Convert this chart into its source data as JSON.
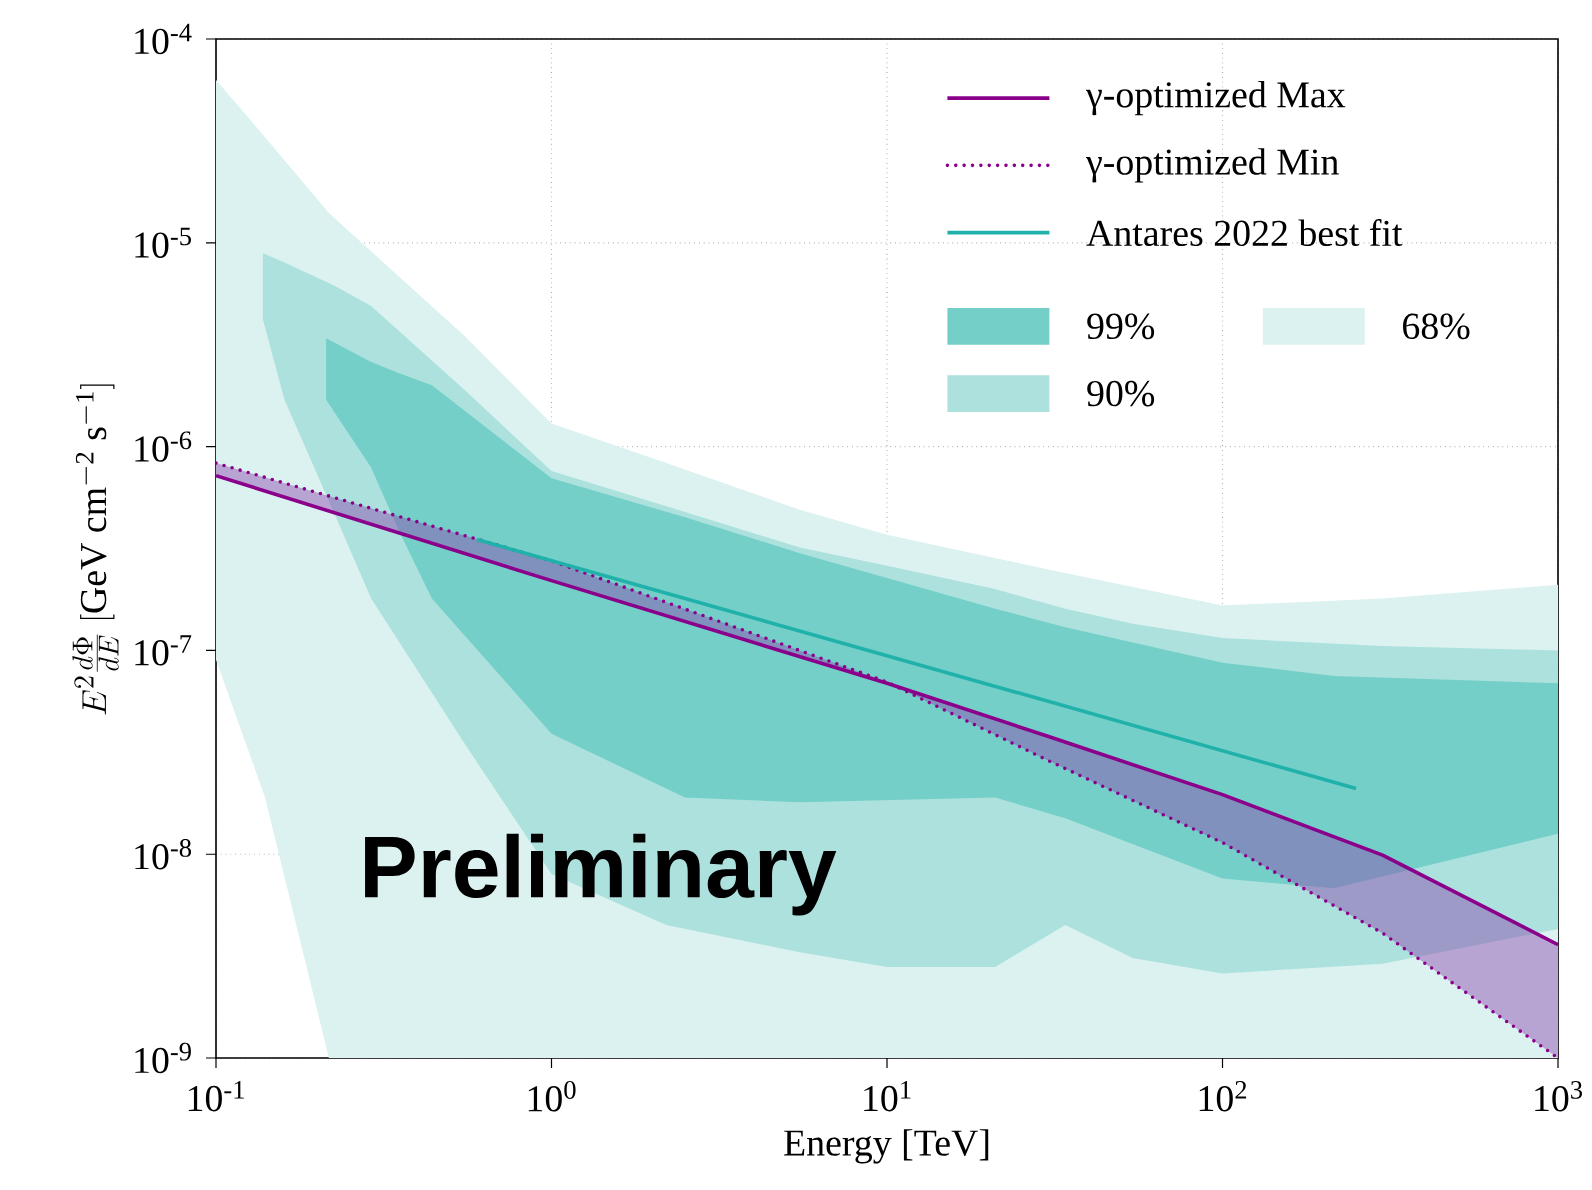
{
  "chart_data": {
    "type": "line",
    "xlabel": "Energy [TeV]",
    "ylabel": "E^2\\frac{d\\Phi}{dE}\\;[\\mathrm{GeV\\ cm^{-2}\\ s^{-1}}]",
    "log": "xy",
    "grid": true,
    "legend": "top right",
    "xlim": [
      0.1,
      1000
    ],
    "ylim": [
      1e-09,
      0.0001
    ],
    "xticks": [
      {
        "value": 0.1,
        "label": "10$^{-1}$"
      },
      {
        "value": 1,
        "label": "10$^{0}$"
      },
      {
        "value": 10,
        "label": "10$^{1}$"
      },
      {
        "value": 100,
        "label": "10$^{2}$"
      },
      {
        "value": 1000,
        "label": "10$^{3}$"
      }
    ],
    "yticks": [
      {
        "value": 1e-09,
        "label": "10$^{-9}$"
      },
      {
        "value": 1e-08,
        "label": "10$^{-8}$"
      },
      {
        "value": 1e-07,
        "label": "10$^{-7}$"
      },
      {
        "value": 1e-06,
        "label": "10$^{-6}$"
      },
      {
        "value": 1e-05,
        "label": "10$^{-5}$"
      },
      {
        "value": 0.0001,
        "label": "10$^{-4}$"
      }
    ],
    "annotations": [
      "Preliminary"
    ],
    "series": [
      {
        "name": "68%",
        "color": "#dbf2f0",
        "x": [
          0.1,
          0.14,
          0.217,
          0.55,
          1,
          2.2,
          5.5,
          10,
          30,
          100,
          300,
          1000
        ],
        "values": [
          null,
          null,
          null,
          null,
          null,
          null,
          null,
          null,
          null,
          null,
          null,
          null
        ],
        "upper": [
          6.3e-05,
          3.3e-05,
          1.4e-05,
          3.5e-06,
          1.3e-06,
          8.3e-07,
          4.9e-07,
          3.7e-07,
          2.5e-07,
          1.66e-07,
          1.8e-07,
          2.1e-07
        ],
        "lower": [
          9e-08,
          1.9e-08,
          1e-09,
          1e-09,
          1e-09,
          1e-09,
          1e-09,
          1e-09,
          1e-09,
          1e-09,
          1e-09,
          1e-09
        ]
      },
      {
        "name": "90%",
        "color": "#ace1dd",
        "x": [
          0.138,
          0.16,
          0.224,
          0.29,
          0.55,
          1,
          2.2,
          5.5,
          10,
          21,
          34,
          54,
          100,
          300,
          1000
        ],
        "values": [
          null,
          null,
          null,
          null,
          null,
          null,
          null,
          null,
          null,
          null,
          null,
          null,
          null,
          null,
          null
        ],
        "upper": [
          8.9e-06,
          8e-06,
          6.2e-06,
          4.9e-06,
          1.9e-06,
          7.6e-07,
          5.1e-07,
          3.2e-07,
          2.6e-07,
          2e-07,
          1.6e-07,
          1.35e-07,
          1.15e-07,
          1.05e-07,
          1e-07
        ],
        "lower": [
          4.2e-06,
          1.7e-06,
          4.8e-07,
          1.8e-07,
          3.5e-08,
          8e-09,
          4.5e-09,
          3.3e-09,
          2.8e-09,
          2.8e-09,
          4.5e-09,
          3.1e-09,
          2.6e-09,
          2.9e-09,
          4.3e-09
        ]
      },
      {
        "name": "99%",
        "color": "#74cfc8",
        "x": [
          0.213,
          0.29,
          0.35,
          0.44,
          1,
          2.5,
          5.5,
          21,
          34,
          100,
          215,
          1000
        ],
        "values": [
          null,
          null,
          null,
          null,
          null,
          null,
          null,
          null,
          null,
          null,
          null,
          null
        ],
        "upper": [
          3.4e-06,
          2.6e-06,
          2.3e-06,
          2e-06,
          7e-07,
          4.5e-07,
          3e-07,
          1.6e-07,
          1.3e-07,
          8.7e-08,
          7.5e-08,
          6.9e-08
        ],
        "lower": [
          1.7e-06,
          7.9e-07,
          3.9e-07,
          1.8e-07,
          3.9e-08,
          1.9e-08,
          1.8e-08,
          1.9e-08,
          1.5e-08,
          7.6e-09,
          6.8e-09,
          1.26e-08
        ]
      },
      {
        "color": "#8e44ad",
        "x": [
          0.1,
          1,
          10,
          30,
          100,
          300,
          1000
        ],
        "values": [
          null,
          null,
          null,
          null,
          null,
          null,
          null
        ],
        "upper": [
          7.2e-07,
          2.2e-07,
          6.9e-08,
          3.8e-08,
          1.96e-08,
          9.9e-09,
          3.6e-09
        ],
        "lower": [
          8.3e-07,
          2.75e-07,
          7e-08,
          2.9e-08,
          1.14e-08,
          4.1e-09,
          1e-09
        ]
      },
      {
        "name": "γ-optimized Max",
        "color": "#8b008b",
        "line_style": "solid",
        "x": [
          0.1,
          1,
          10,
          30,
          100,
          300,
          1000
        ],
        "values": [
          7.2e-07,
          2.2e-07,
          6.9e-08,
          3.8e-08,
          1.96e-08,
          9.9e-09,
          3.6e-09
        ]
      },
      {
        "name": "γ-optimized Min",
        "color": "#8b008b",
        "line_style": "dotted",
        "x": [
          0.1,
          1,
          10,
          30,
          100,
          300,
          1000
        ],
        "values": [
          8.3e-07,
          2.75e-07,
          7e-08,
          2.9e-08,
          1.14e-08,
          4.1e-09,
          1e-09
        ]
      },
      {
        "name": "Antares 2022 best fit",
        "color": "#20b2aa",
        "line_style": "solid",
        "x": [
          0.6,
          250
        ],
        "values": [
          3.5e-07,
          2.1e-08
        ]
      }
    ]
  }
}
